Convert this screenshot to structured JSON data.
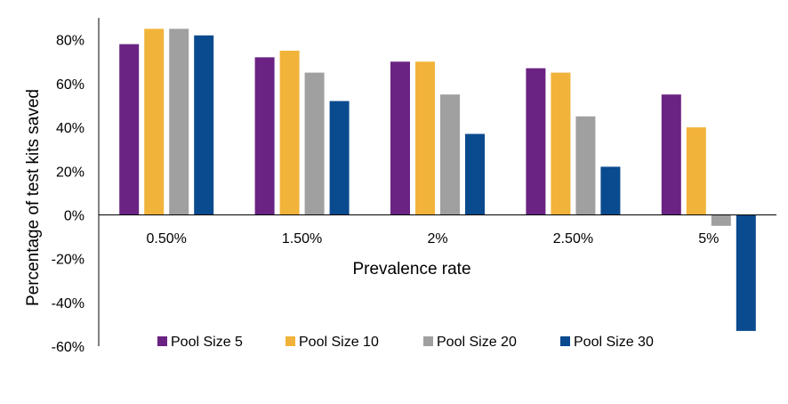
{
  "chart_data": {
    "type": "bar",
    "title": "",
    "xlabel": "Prevalence rate",
    "ylabel": "Percentage of test kits saved",
    "categories": [
      "0.50%",
      "1.50%",
      "2%",
      "2.50%",
      "5%"
    ],
    "series": [
      {
        "name": "Pool Size 5",
        "color": "#6a2382",
        "values": [
          78,
          72,
          70,
          67,
          55
        ]
      },
      {
        "name": "Pool Size 10",
        "color": "#f2b33a",
        "values": [
          85,
          75,
          70,
          65,
          40
        ]
      },
      {
        "name": "Pool Size 20",
        "color": "#a0a0a0",
        "values": [
          85,
          65,
          55,
          45,
          -5
        ]
      },
      {
        "name": "Pool Size 30",
        "color": "#0a4a8e",
        "values": [
          82,
          52,
          37,
          22,
          -53
        ]
      }
    ],
    "ylim": [
      -60,
      90
    ],
    "yticks": [
      -60,
      -40,
      -20,
      0,
      20,
      40,
      60,
      80
    ],
    "ytick_labels": [
      "-60%",
      "-40%",
      "-20%",
      "0%",
      "20%",
      "40%",
      "60%",
      "80%"
    ],
    "grid": false,
    "legend_position": "bottom"
  }
}
